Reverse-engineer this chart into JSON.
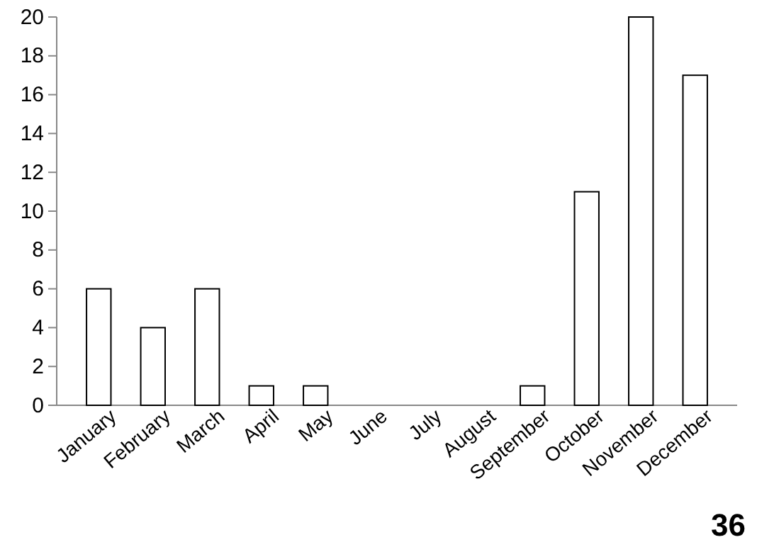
{
  "chart_data": {
    "type": "bar",
    "categories": [
      "January",
      "February",
      "March",
      "April",
      "May",
      "June",
      "July",
      "August",
      "September",
      "October",
      "November",
      "December"
    ],
    "values": [
      6,
      4,
      6,
      1,
      1,
      0,
      0,
      0,
      1,
      11,
      20,
      17
    ],
    "color": "#ffffff",
    "ylim": [
      0,
      20
    ],
    "yticks": [
      0,
      2,
      4,
      6,
      8,
      10,
      12,
      14,
      16,
      18,
      20
    ],
    "grid": false,
    "annotations": [
      "36"
    ]
  }
}
